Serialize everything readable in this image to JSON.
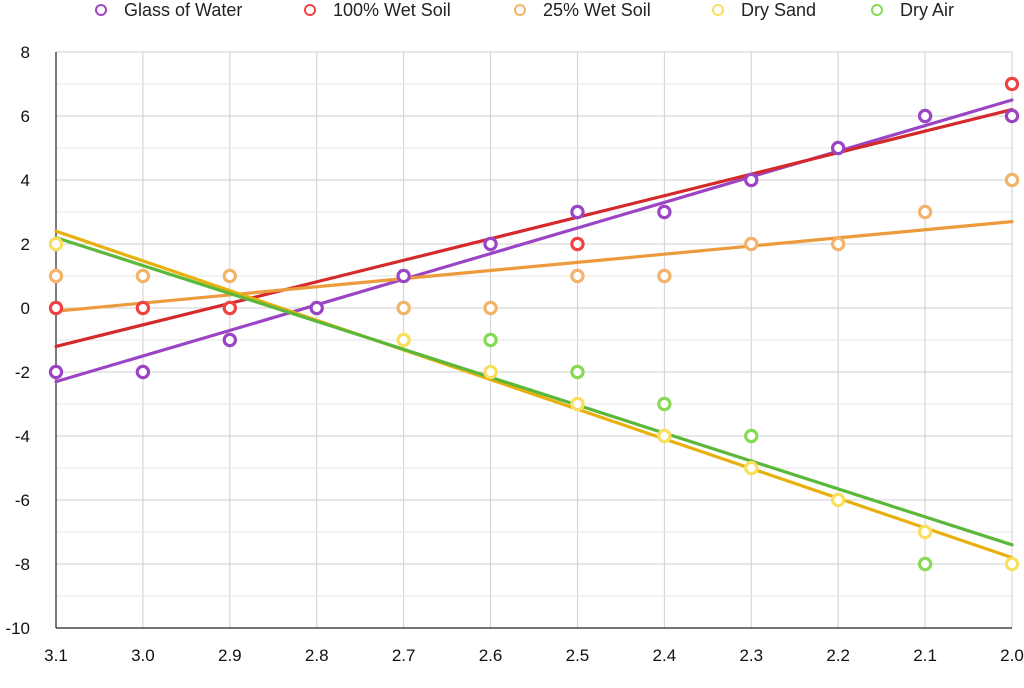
{
  "chart_data": {
    "type": "scatter",
    "title": "",
    "xlabel": "",
    "ylabel": "",
    "x_reversed": true,
    "xlim": [
      3.1,
      2.0
    ],
    "ylim": [
      -10,
      8
    ],
    "x_ticks": [
      "3.1",
      "3.0",
      "2.9",
      "2.8",
      "2.7",
      "2.6",
      "2.5",
      "2.4",
      "2.3",
      "2.2",
      "2.1",
      "2.0"
    ],
    "y_ticks": [
      "8",
      "6",
      "4",
      "2",
      "0",
      "-2",
      "-4",
      "-6",
      "-8",
      "-10"
    ],
    "grid": true,
    "legend_position": "top",
    "x": [
      3.1,
      3.0,
      2.9,
      2.8,
      2.7,
      2.6,
      2.5,
      2.4,
      2.3,
      2.2,
      2.1,
      2.0
    ],
    "series": [
      {
        "name": "Glass of Water",
        "color": "#9b45c4",
        "line_color": "#9b45c4",
        "values": [
          -2,
          -2,
          -1,
          0,
          1,
          2,
          3,
          3,
          4,
          5,
          6,
          6
        ],
        "trendline": [
          -2.3,
          6.5
        ]
      },
      {
        "name": "100% Wet Soil",
        "color": "#ee4444",
        "line_color": "#d42a2a",
        "values": [
          0,
          0,
          0,
          null,
          null,
          null,
          2,
          null,
          null,
          null,
          null,
          7
        ],
        "trendline": [
          -1.2,
          6.2
        ]
      },
      {
        "name": "25% Wet Soil",
        "color": "#f2b36a",
        "line_color": "#ec9a3c",
        "values": [
          1,
          1,
          1,
          null,
          0,
          0,
          1,
          1,
          2,
          2,
          3,
          4
        ],
        "trendline": [
          -0.1,
          2.7
        ]
      },
      {
        "name": "Dry Sand",
        "color": "#f8df60",
        "line_color": "#e8b00c",
        "values": [
          2,
          null,
          null,
          null,
          -1,
          -2,
          -3,
          -4,
          -5,
          -6,
          -7,
          -8
        ],
        "trendline": [
          2.4,
          -7.8
        ]
      },
      {
        "name": "Dry Air",
        "color": "#88d956",
        "line_color": "#5cb83a",
        "values": [
          null,
          null,
          null,
          null,
          null,
          -1,
          -2,
          -3,
          -4,
          null,
          -8,
          null
        ],
        "trendline": [
          2.2,
          -7.4
        ]
      }
    ]
  }
}
